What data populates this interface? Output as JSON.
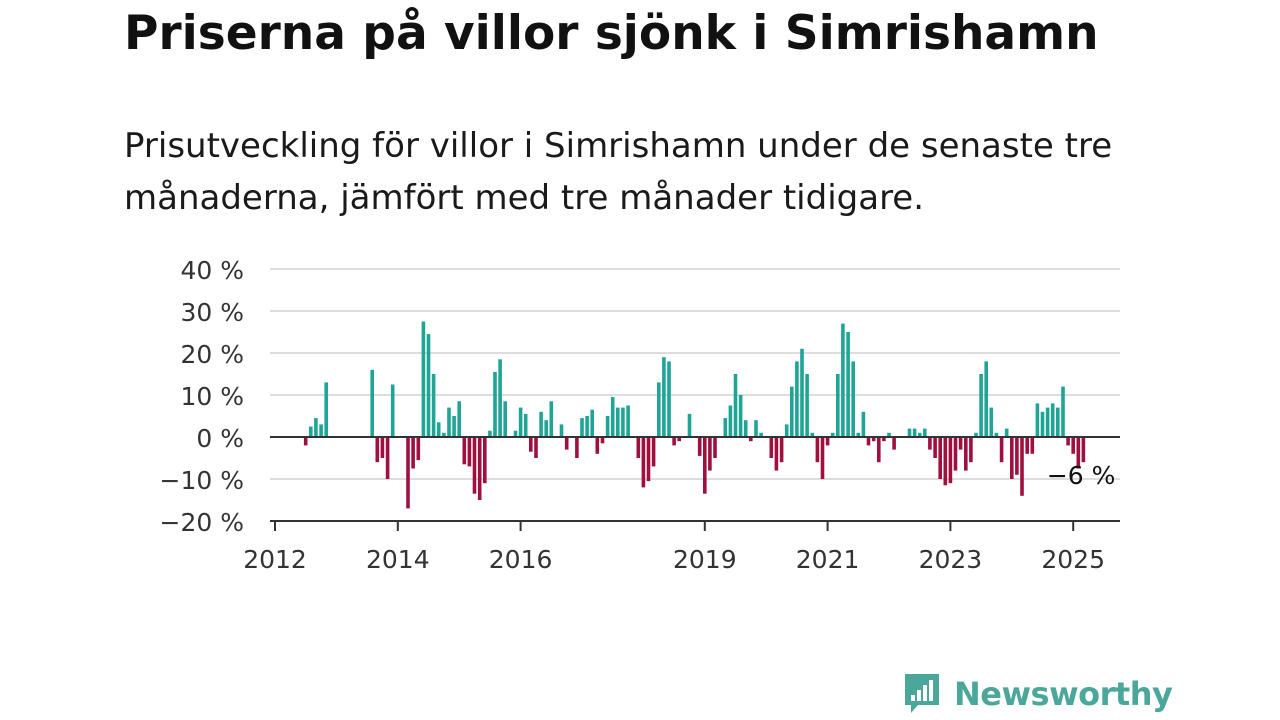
{
  "title": "Priserna på villor sjönk i Simrishamn",
  "subtitle": "Prisutveckling för villor i Simrishamn under de senaste tre månaderna, jämfört med tre månader tidigare.",
  "brand": {
    "name": "Newsworthy",
    "color": "#4aa79a",
    "icon": "newsworthy-logo-icon"
  },
  "colors": {
    "positive": "#1ea595",
    "negative": "#a0103f",
    "zero_line": "#333333",
    "grid": "#dddddd"
  },
  "chart_data": {
    "type": "bar",
    "title": "",
    "xlabel": "",
    "ylabel": "",
    "y_ticks": [
      {
        "value": 40,
        "label": "40 %"
      },
      {
        "value": 30,
        "label": "30 %"
      },
      {
        "value": 20,
        "label": "20 %"
      },
      {
        "value": 10,
        "label": "10 %"
      },
      {
        "value": 0,
        "label": "0 %"
      },
      {
        "value": -10,
        "label": "−10 %"
      },
      {
        "value": -20,
        "label": "−20 %"
      }
    ],
    "ylim": [
      -20,
      40
    ],
    "x_ticks": [
      {
        "year": 2012,
        "label": "2012"
      },
      {
        "year": 2014,
        "label": "2014"
      },
      {
        "year": 2016,
        "label": "2016"
      },
      {
        "year": 2019,
        "label": "2019"
      },
      {
        "year": 2021,
        "label": "2021"
      },
      {
        "year": 2023,
        "label": "2023"
      },
      {
        "year": 2025,
        "label": "2025"
      }
    ],
    "xlim": [
      "2012-01",
      "2025-12"
    ],
    "grid": true,
    "last_value_label": "−6 %",
    "series": [
      {
        "points": [
          {
            "x": "2012-07",
            "y": -2
          },
          {
            "x": "2012-08",
            "y": 2.5
          },
          {
            "x": "2012-09",
            "y": 4.5
          },
          {
            "x": "2012-10",
            "y": 3
          },
          {
            "x": "2012-11",
            "y": 13
          },
          {
            "x": "2013-08",
            "y": 16
          },
          {
            "x": "2013-09",
            "y": -6
          },
          {
            "x": "2013-10",
            "y": -5
          },
          {
            "x": "2013-11",
            "y": -10
          },
          {
            "x": "2013-12",
            "y": 12.5
          },
          {
            "x": "2014-03",
            "y": -17
          },
          {
            "x": "2014-04",
            "y": -7.5
          },
          {
            "x": "2014-05",
            "y": -5.5
          },
          {
            "x": "2014-06",
            "y": 27.5
          },
          {
            "x": "2014-07",
            "y": 24.5
          },
          {
            "x": "2014-08",
            "y": 15
          },
          {
            "x": "2014-09",
            "y": 3.5
          },
          {
            "x": "2014-10",
            "y": 1
          },
          {
            "x": "2014-11",
            "y": 7
          },
          {
            "x": "2014-12",
            "y": 5
          },
          {
            "x": "2015-01",
            "y": 8.5
          },
          {
            "x": "2015-02",
            "y": -6.5
          },
          {
            "x": "2015-03",
            "y": -7
          },
          {
            "x": "2015-04",
            "y": -13.5
          },
          {
            "x": "2015-05",
            "y": -15
          },
          {
            "x": "2015-06",
            "y": -11
          },
          {
            "x": "2015-07",
            "y": 1.5
          },
          {
            "x": "2015-08",
            "y": 15.5
          },
          {
            "x": "2015-09",
            "y": 18.5
          },
          {
            "x": "2015-10",
            "y": 8.5
          },
          {
            "x": "2015-12",
            "y": 1.5
          },
          {
            "x": "2016-01",
            "y": 7
          },
          {
            "x": "2016-02",
            "y": 5.5
          },
          {
            "x": "2016-03",
            "y": -3.5
          },
          {
            "x": "2016-04",
            "y": -5
          },
          {
            "x": "2016-05",
            "y": 6
          },
          {
            "x": "2016-06",
            "y": 4
          },
          {
            "x": "2016-07",
            "y": 8.5
          },
          {
            "x": "2016-09",
            "y": 3
          },
          {
            "x": "2016-10",
            "y": -3
          },
          {
            "x": "2016-12",
            "y": -5
          },
          {
            "x": "2017-01",
            "y": 4.5
          },
          {
            "x": "2017-02",
            "y": 5
          },
          {
            "x": "2017-03",
            "y": 6.5
          },
          {
            "x": "2017-04",
            "y": -4
          },
          {
            "x": "2017-05",
            "y": -1.5
          },
          {
            "x": "2017-06",
            "y": 5
          },
          {
            "x": "2017-07",
            "y": 9.5
          },
          {
            "x": "2017-08",
            "y": 7
          },
          {
            "x": "2017-09",
            "y": 7
          },
          {
            "x": "2017-10",
            "y": 7.5
          },
          {
            "x": "2017-12",
            "y": -5
          },
          {
            "x": "2018-01",
            "y": -12
          },
          {
            "x": "2018-02",
            "y": -10.5
          },
          {
            "x": "2018-03",
            "y": -7
          },
          {
            "x": "2018-04",
            "y": 13
          },
          {
            "x": "2018-05",
            "y": 19
          },
          {
            "x": "2018-06",
            "y": 18
          },
          {
            "x": "2018-07",
            "y": -2
          },
          {
            "x": "2018-08",
            "y": -1
          },
          {
            "x": "2018-10",
            "y": 5.5
          },
          {
            "x": "2018-12",
            "y": -4.5
          },
          {
            "x": "2019-01",
            "y": -13.5
          },
          {
            "x": "2019-02",
            "y": -8
          },
          {
            "x": "2019-03",
            "y": -5
          },
          {
            "x": "2019-05",
            "y": 4.5
          },
          {
            "x": "2019-06",
            "y": 7.5
          },
          {
            "x": "2019-07",
            "y": 15
          },
          {
            "x": "2019-08",
            "y": 10
          },
          {
            "x": "2019-09",
            "y": 4
          },
          {
            "x": "2019-10",
            "y": -1
          },
          {
            "x": "2019-11",
            "y": 4
          },
          {
            "x": "2019-12",
            "y": 1
          },
          {
            "x": "2020-02",
            "y": -5
          },
          {
            "x": "2020-03",
            "y": -8
          },
          {
            "x": "2020-04",
            "y": -6
          },
          {
            "x": "2020-05",
            "y": 3
          },
          {
            "x": "2020-06",
            "y": 12
          },
          {
            "x": "2020-07",
            "y": 18
          },
          {
            "x": "2020-08",
            "y": 21
          },
          {
            "x": "2020-09",
            "y": 15
          },
          {
            "x": "2020-10",
            "y": 1
          },
          {
            "x": "2020-11",
            "y": -6
          },
          {
            "x": "2020-12",
            "y": -10
          },
          {
            "x": "2021-01",
            "y": -2
          },
          {
            "x": "2021-02",
            "y": 1
          },
          {
            "x": "2021-03",
            "y": 15
          },
          {
            "x": "2021-04",
            "y": 27
          },
          {
            "x": "2021-05",
            "y": 25
          },
          {
            "x": "2021-06",
            "y": 18
          },
          {
            "x": "2021-07",
            "y": 1
          },
          {
            "x": "2021-08",
            "y": 6
          },
          {
            "x": "2021-09",
            "y": -2
          },
          {
            "x": "2021-10",
            "y": -1
          },
          {
            "x": "2021-11",
            "y": -6
          },
          {
            "x": "2021-12",
            "y": -1
          },
          {
            "x": "2022-01",
            "y": 1
          },
          {
            "x": "2022-02",
            "y": -3
          },
          {
            "x": "2022-05",
            "y": 2
          },
          {
            "x": "2022-06",
            "y": 2
          },
          {
            "x": "2022-07",
            "y": 1
          },
          {
            "x": "2022-08",
            "y": 2
          },
          {
            "x": "2022-09",
            "y": -3
          },
          {
            "x": "2022-10",
            "y": -5
          },
          {
            "x": "2022-11",
            "y": -10
          },
          {
            "x": "2022-12",
            "y": -11.5
          },
          {
            "x": "2023-01",
            "y": -11
          },
          {
            "x": "2023-02",
            "y": -8
          },
          {
            "x": "2023-03",
            "y": -3
          },
          {
            "x": "2023-04",
            "y": -8
          },
          {
            "x": "2023-05",
            "y": -6
          },
          {
            "x": "2023-06",
            "y": 1
          },
          {
            "x": "2023-07",
            "y": 15
          },
          {
            "x": "2023-08",
            "y": 18
          },
          {
            "x": "2023-09",
            "y": 7
          },
          {
            "x": "2023-10",
            "y": 1
          },
          {
            "x": "2023-11",
            "y": -6
          },
          {
            "x": "2023-12",
            "y": 2
          },
          {
            "x": "2024-01",
            "y": -10
          },
          {
            "x": "2024-02",
            "y": -9
          },
          {
            "x": "2024-03",
            "y": -14
          },
          {
            "x": "2024-04",
            "y": -4
          },
          {
            "x": "2024-05",
            "y": -4
          },
          {
            "x": "2024-06",
            "y": 8
          },
          {
            "x": "2024-07",
            "y": 6
          },
          {
            "x": "2024-08",
            "y": 7
          },
          {
            "x": "2024-09",
            "y": 8
          },
          {
            "x": "2024-10",
            "y": 7
          },
          {
            "x": "2024-11",
            "y": 12
          },
          {
            "x": "2024-12",
            "y": -2
          },
          {
            "x": "2025-01",
            "y": -4
          },
          {
            "x": "2025-02",
            "y": -7.5
          },
          {
            "x": "2025-03",
            "y": -6
          }
        ]
      }
    ]
  }
}
